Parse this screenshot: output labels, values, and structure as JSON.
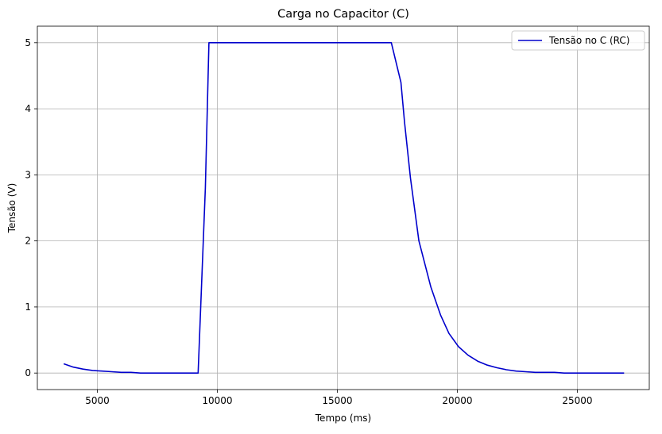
{
  "chart_data": {
    "type": "line",
    "title": "Carga no Capacitor (C)",
    "xlabel": "Tempo (ms)",
    "ylabel": "Tensão (V)",
    "xlim": [
      2500,
      28000
    ],
    "ylim": [
      -0.25,
      5.25
    ],
    "xticks": [
      5000,
      10000,
      15000,
      20000,
      25000
    ],
    "yticks": [
      0,
      1,
      2,
      3,
      4,
      5
    ],
    "grid": true,
    "legend": "top-right",
    "series": [
      {
        "name": "Tensão no C (RC)",
        "color": "#0000cc",
        "x": [
          3600,
          4000,
          4400,
          4800,
          5200,
          5600,
          6000,
          6400,
          6800,
          7200,
          7600,
          8000,
          8400,
          8800,
          9200,
          9500,
          9650,
          10000,
          12000,
          14000,
          16000,
          17250,
          17650,
          17800,
          18050,
          18400,
          18900,
          19300,
          19650,
          20050,
          20450,
          20850,
          21250,
          21650,
          22050,
          22450,
          22850,
          23250,
          23650,
          24050,
          24450,
          24850,
          25250,
          25650,
          26050,
          26450,
          26950
        ],
        "y": [
          0.14,
          0.09,
          0.06,
          0.04,
          0.03,
          0.02,
          0.01,
          0.01,
          0.0,
          0.0,
          0.0,
          0.0,
          0.0,
          0.0,
          0.0,
          2.8,
          5.0,
          5.0,
          5.0,
          5.0,
          5.0,
          5.0,
          4.4,
          3.8,
          2.95,
          2.0,
          1.3,
          0.88,
          0.6,
          0.4,
          0.27,
          0.18,
          0.12,
          0.08,
          0.05,
          0.03,
          0.02,
          0.01,
          0.01,
          0.01,
          0.0,
          0.0,
          0.0,
          0.0,
          0.0,
          0.0,
          0.0
        ]
      }
    ]
  }
}
